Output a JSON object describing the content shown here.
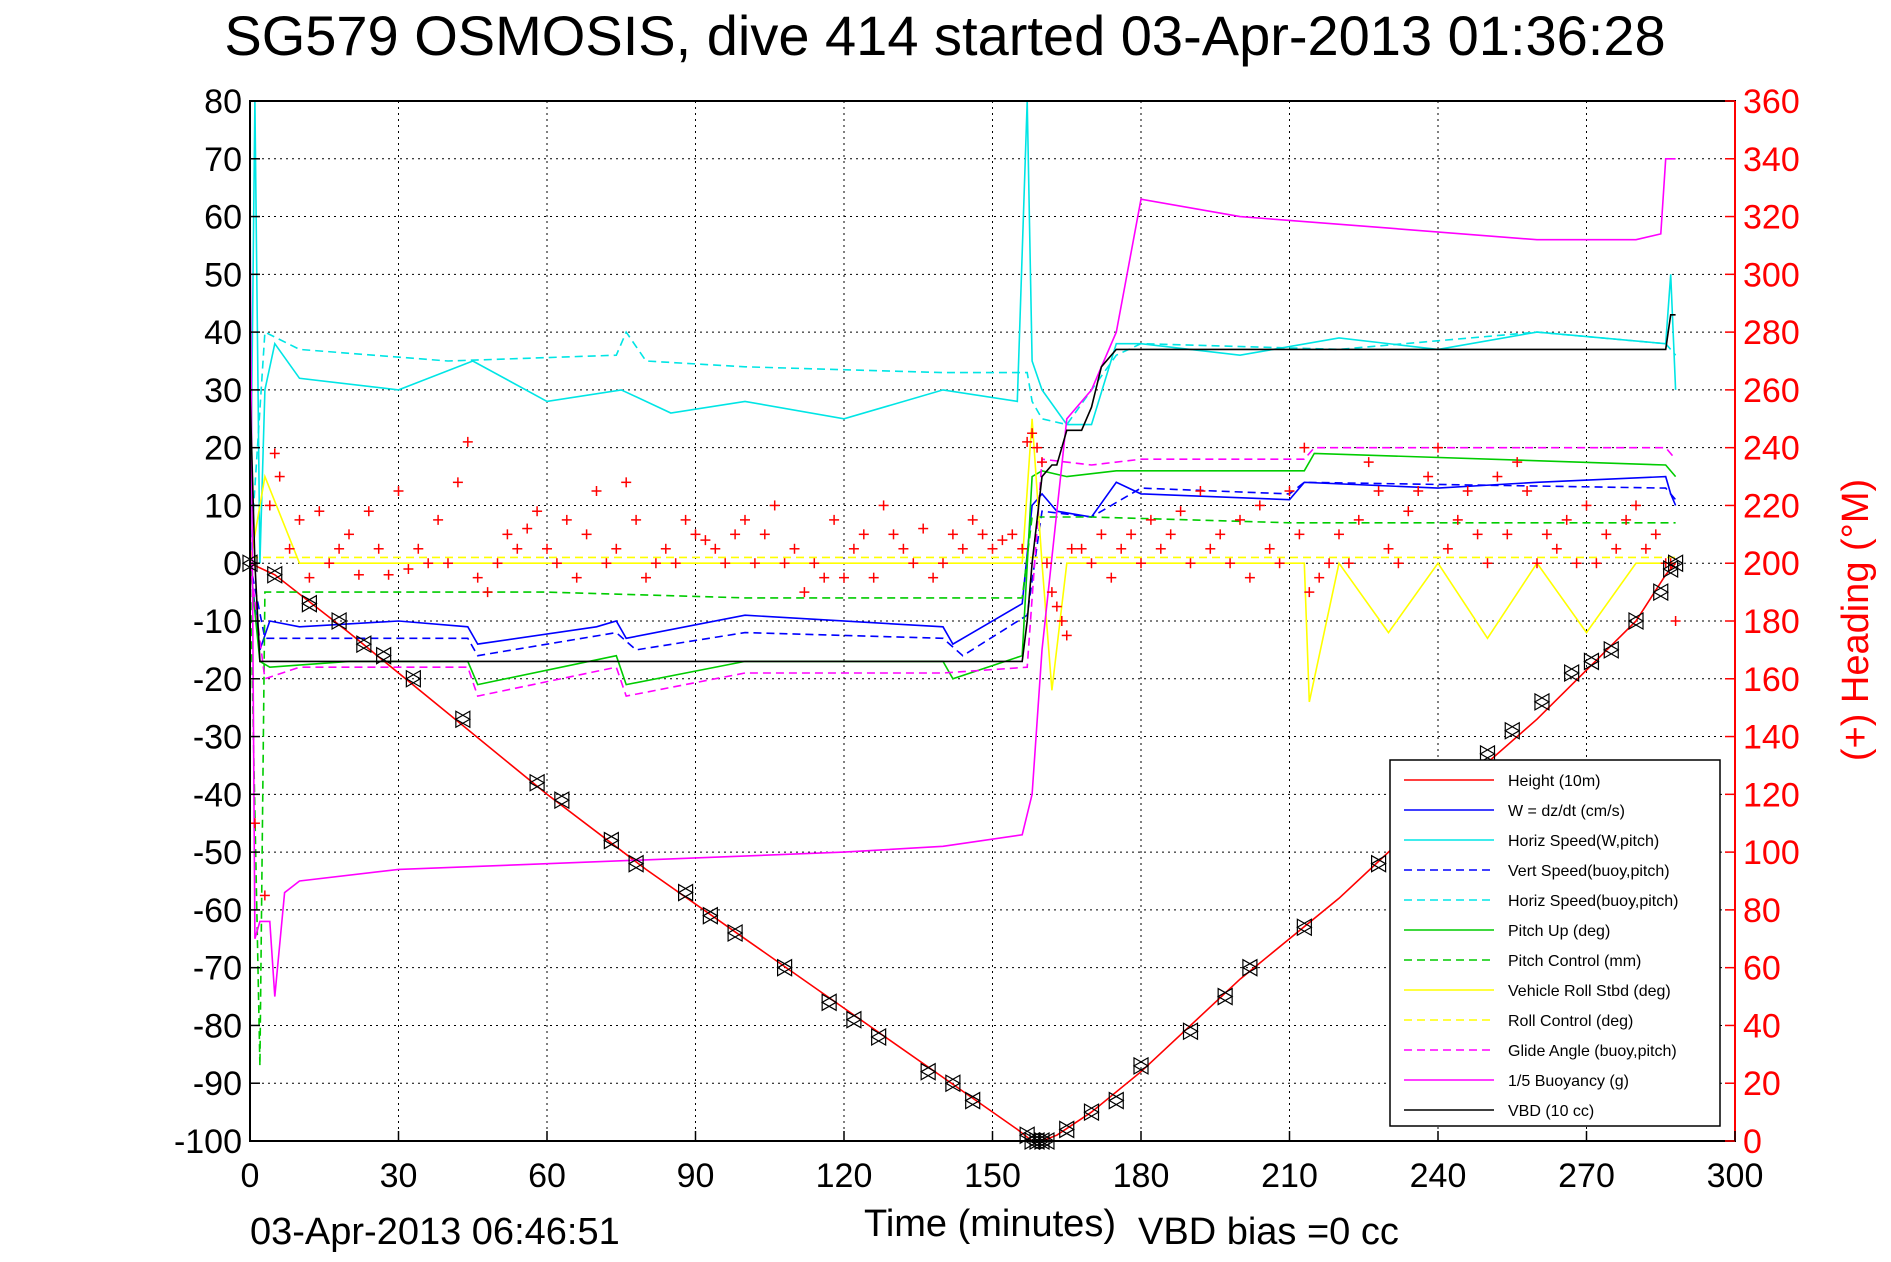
{
  "chart_data": {
    "type": "line",
    "title": "SG579 OSMOSIS, dive 414 started 03-Apr-2013 01:36:28",
    "xlabel": "Time (minutes)",
    "ylabel_right": "(+) Heading (°M)",
    "footer_left": "03-Apr-2013 06:46:51",
    "footer_right": "VBD bias =0 cc",
    "xlim": [
      0,
      300
    ],
    "ylim": [
      -100,
      80
    ],
    "y2lim": [
      0,
      360
    ],
    "xticks": [
      "0",
      "30",
      "60",
      "90",
      "120",
      "150",
      "180",
      "210",
      "240",
      "270",
      "300"
    ],
    "yticks": [
      "80",
      "70",
      "60",
      "50",
      "40",
      "30",
      "20",
      "10",
      "0",
      "-10",
      "-20",
      "-30",
      "-40",
      "-50",
      "-60",
      "-70",
      "-80",
      "-90",
      "-100"
    ],
    "y2ticks": [
      "360",
      "340",
      "320",
      "300",
      "280",
      "260",
      "240",
      "220",
      "200",
      "180",
      "160",
      "140",
      "120",
      "100",
      "80",
      "60",
      "40",
      "20",
      "0"
    ],
    "grid": true,
    "legend_position": "bottom-right",
    "series": [
      {
        "name": "Height (10m)",
        "color": "#ff0000",
        "style": "solid",
        "x": [
          0,
          5,
          20,
          40,
          60,
          80,
          100,
          120,
          140,
          155,
          158,
          160,
          163,
          170,
          180,
          200,
          220,
          240,
          260,
          280,
          286,
          288
        ],
        "y": [
          0,
          -2,
          -12,
          -26,
          -40,
          -53,
          -65,
          -77,
          -89,
          -98,
          -100,
          -100,
          -99,
          -95,
          -88,
          -72,
          -58,
          -42,
          -27,
          -10,
          -2,
          0
        ]
      },
      {
        "name": "W = dz/dt (cm/s)",
        "color": "#0000ff",
        "style": "solid",
        "x": [
          0,
          2,
          4,
          10,
          30,
          44,
          46,
          70,
          74,
          76,
          100,
          140,
          142,
          156,
          158,
          160,
          163,
          170,
          175,
          180,
          210,
          213,
          240,
          260,
          286,
          287,
          288
        ],
        "y": [
          0,
          -15,
          -10,
          -11,
          -10,
          -11,
          -14,
          -11,
          -10,
          -13,
          -9,
          -11,
          -14,
          -7,
          10,
          12,
          9,
          8,
          14,
          12,
          11,
          14,
          13,
          14,
          15,
          12,
          10
        ]
      },
      {
        "name": "Horiz Speed(W,pitch)",
        "color": "#00e5e5",
        "style": "solid",
        "x": [
          0,
          1,
          2,
          3,
          5,
          10,
          30,
          45,
          60,
          75,
          85,
          100,
          120,
          140,
          155,
          157,
          158,
          160,
          165,
          170,
          175,
          180,
          200,
          220,
          240,
          260,
          286,
          287,
          288
        ],
        "y": [
          0,
          80,
          0,
          30,
          38,
          32,
          30,
          35,
          28,
          30,
          26,
          28,
          25,
          30,
          28,
          80,
          35,
          30,
          24,
          24,
          38,
          38,
          36,
          39,
          37,
          40,
          38,
          50,
          30
        ]
      },
      {
        "name": "Vert Speed(buoy,pitch)",
        "color": "#0000ff",
        "style": "dashed",
        "x": [
          0,
          3,
          10,
          44,
          46,
          74,
          78,
          100,
          140,
          144,
          157,
          160,
          170,
          180,
          210,
          213,
          286,
          288
        ],
        "y": [
          0,
          -13,
          -13,
          -13,
          -16,
          -12,
          -15,
          -12,
          -13,
          -16,
          -9,
          9,
          8,
          13,
          12,
          14,
          13,
          11
        ]
      },
      {
        "name": "Horiz Speed(buoy,pitch)",
        "color": "#00e5e5",
        "style": "dashed",
        "x": [
          0,
          3,
          10,
          40,
          74,
          76,
          80,
          100,
          140,
          157,
          158,
          160,
          165,
          175,
          180,
          220,
          260,
          286,
          288
        ],
        "y": [
          0,
          40,
          37,
          35,
          36,
          40,
          35,
          34,
          33,
          33,
          28,
          25,
          24,
          36,
          38,
          37,
          40,
          38,
          36
        ]
      },
      {
        "name": "Pitch Up (deg)",
        "color": "#00cc00",
        "style": "solid",
        "x": [
          0,
          2,
          4,
          20,
          44,
          46,
          74,
          76,
          100,
          140,
          142,
          156,
          158,
          160,
          165,
          175,
          180,
          213,
          215,
          286,
          288
        ],
        "y": [
          0,
          -17,
          -18,
          -17,
          -17,
          -21,
          -16,
          -21,
          -17,
          -17,
          -20,
          -16,
          15,
          16,
          15,
          16,
          16,
          16,
          19,
          17,
          15
        ]
      },
      {
        "name": "Pitch Control (mm)",
        "color": "#00cc00",
        "style": "dashed",
        "x": [
          0,
          2,
          3,
          5,
          20,
          60,
          100,
          156,
          158,
          170,
          210,
          288
        ],
        "y": [
          0,
          -87,
          -5,
          -5,
          -5,
          -5,
          -6,
          -6,
          8,
          8,
          7,
          7
        ]
      },
      {
        "name": "Vehicle Roll Stbd (deg)",
        "color": "#ffff00",
        "style": "solid",
        "x": [
          0,
          3,
          10,
          30,
          60,
          90,
          120,
          150,
          156,
          158,
          160,
          162,
          165,
          170,
          180,
          200,
          213,
          214,
          220,
          230,
          240,
          250,
          260,
          270,
          280,
          288
        ],
        "y": [
          0,
          15,
          0,
          0,
          0,
          0,
          0,
          0,
          0,
          25,
          0,
          -22,
          0,
          0,
          0,
          0,
          0,
          -24,
          0,
          -12,
          0,
          -13,
          0,
          -12,
          0,
          0
        ]
      },
      {
        "name": "Roll Control (deg)",
        "color": "#ffff00",
        "style": "dashed",
        "x": [
          0,
          156,
          158,
          288
        ],
        "y": [
          1,
          1,
          1,
          1
        ]
      },
      {
        "name": "Glide Angle (buoy,pitch)",
        "color": "#ff00ff",
        "style": "dashed",
        "x": [
          0,
          3,
          10,
          44,
          46,
          74,
          76,
          100,
          140,
          157,
          160,
          170,
          180,
          213,
          215,
          286,
          288
        ],
        "y": [
          0,
          -20,
          -18,
          -18,
          -23,
          -18,
          -23,
          -19,
          -19,
          -18,
          18,
          17,
          18,
          18,
          20,
          20,
          18
        ]
      },
      {
        "name": "1/5 Buoyancy (g)",
        "color": "#ff00ff",
        "style": "solid",
        "x": [
          0,
          1,
          2,
          4,
          5,
          7,
          10,
          30,
          60,
          90,
          120,
          140,
          156,
          158,
          160,
          165,
          170,
          175,
          180,
          200,
          230,
          260,
          280,
          285,
          286,
          288
        ],
        "y": [
          62,
          -65,
          -62,
          -62,
          -75,
          -57,
          -55,
          -53,
          -52,
          -51,
          -50,
          -49,
          -47,
          -40,
          -15,
          25,
          30,
          40,
          63,
          60,
          58,
          56,
          56,
          57,
          70,
          70
        ]
      },
      {
        "name": "VBD (10 cc)",
        "color": "#000000",
        "style": "solid",
        "x": [
          0,
          1,
          2,
          3,
          20,
          60,
          100,
          140,
          156,
          157,
          158,
          160,
          162,
          163,
          165,
          168,
          170,
          172,
          175,
          180,
          200,
          260,
          286,
          287,
          288
        ],
        "y": [
          30,
          0,
          -17,
          -17,
          -17,
          -17,
          -17,
          -17,
          -17,
          -10,
          0,
          15,
          17,
          17,
          23,
          23,
          27,
          34,
          37,
          37,
          37,
          37,
          37,
          43,
          43
        ]
      }
    ],
    "heading_series": {
      "name": "Heading",
      "marker": "+",
      "color": "#ff0000",
      "x": [
        1,
        3,
        4,
        5,
        6,
        8,
        10,
        12,
        14,
        16,
        18,
        20,
        22,
        24,
        26,
        28,
        30,
        32,
        34,
        36,
        38,
        40,
        42,
        44,
        46,
        48,
        50,
        52,
        54,
        56,
        58,
        60,
        62,
        64,
        66,
        68,
        70,
        72,
        74,
        76,
        78,
        80,
        82,
        84,
        86,
        88,
        90,
        92,
        94,
        96,
        98,
        100,
        102,
        104,
        106,
        108,
        110,
        112,
        114,
        116,
        118,
        120,
        122,
        124,
        126,
        128,
        130,
        132,
        134,
        136,
        138,
        140,
        142,
        144,
        146,
        148,
        150,
        152,
        154,
        156,
        157,
        158,
        159,
        160,
        161,
        162,
        163,
        164,
        165,
        166,
        168,
        170,
        172,
        174,
        176,
        178,
        180,
        182,
        184,
        186,
        188,
        190,
        192,
        194,
        196,
        198,
        200,
        202,
        204,
        206,
        208,
        210,
        212,
        213,
        214,
        216,
        218,
        220,
        222,
        224,
        226,
        228,
        230,
        232,
        234,
        236,
        238,
        240,
        242,
        244,
        246,
        248,
        250,
        252,
        254,
        256,
        258,
        260,
        262,
        264,
        266,
        268,
        270,
        272,
        274,
        276,
        278,
        280,
        282,
        284,
        286,
        287,
        288
      ],
      "y": [
        110,
        85,
        220,
        238,
        230,
        205,
        215,
        195,
        218,
        200,
        205,
        210,
        196,
        218,
        205,
        196,
        225,
        198,
        205,
        200,
        215,
        200,
        228,
        242,
        195,
        190,
        200,
        210,
        205,
        212,
        218,
        205,
        200,
        215,
        195,
        210,
        225,
        200,
        205,
        228,
        215,
        195,
        200,
        205,
        200,
        215,
        210,
        208,
        205,
        200,
        210,
        215,
        200,
        210,
        220,
        200,
        205,
        190,
        200,
        195,
        215,
        195,
        205,
        210,
        195,
        220,
        210,
        205,
        200,
        212,
        195,
        200,
        210,
        205,
        215,
        210,
        205,
        208,
        210,
        205,
        242,
        245,
        240,
        235,
        200,
        190,
        185,
        180,
        175,
        205,
        205,
        200,
        210,
        195,
        205,
        210,
        200,
        215,
        205,
        210,
        218,
        200,
        225,
        205,
        210,
        200,
        215,
        195,
        220,
        205,
        200,
        225,
        210,
        240,
        190,
        195,
        200,
        210,
        200,
        215,
        235,
        225,
        205,
        200,
        218,
        225,
        230,
        240,
        205,
        215,
        225,
        210,
        200,
        230,
        210,
        235,
        225,
        200,
        210,
        205,
        215,
        200,
        220,
        200,
        210,
        205,
        215,
        220,
        205,
        210,
        200,
        200,
        180
      ]
    },
    "height_markers": {
      "x": [
        0,
        5,
        12,
        18,
        23,
        27,
        33,
        43,
        58,
        63,
        73,
        78,
        88,
        93,
        98,
        108,
        117,
        122,
        127,
        137,
        142,
        146,
        157,
        158,
        159,
        160,
        161,
        165,
        170,
        175,
        180,
        190,
        197,
        202,
        213,
        228,
        240,
        250,
        255,
        261,
        267,
        271,
        275,
        280,
        285,
        287,
        288
      ],
      "y": [
        0,
        -2,
        -7,
        -10,
        -14,
        -16,
        -20,
        -27,
        -38,
        -41,
        -48,
        -52,
        -57,
        -61,
        -64,
        -70,
        -76,
        -79,
        -82,
        -88,
        -90,
        -93,
        -99,
        -100,
        -100,
        -100,
        -100,
        -98,
        -95,
        -93,
        -87,
        -81,
        -75,
        -70,
        -63,
        -52,
        -42,
        -33,
        -29,
        -24,
        -19,
        -17,
        -15,
        -10,
        -5,
        -1,
        0
      ]
    }
  }
}
